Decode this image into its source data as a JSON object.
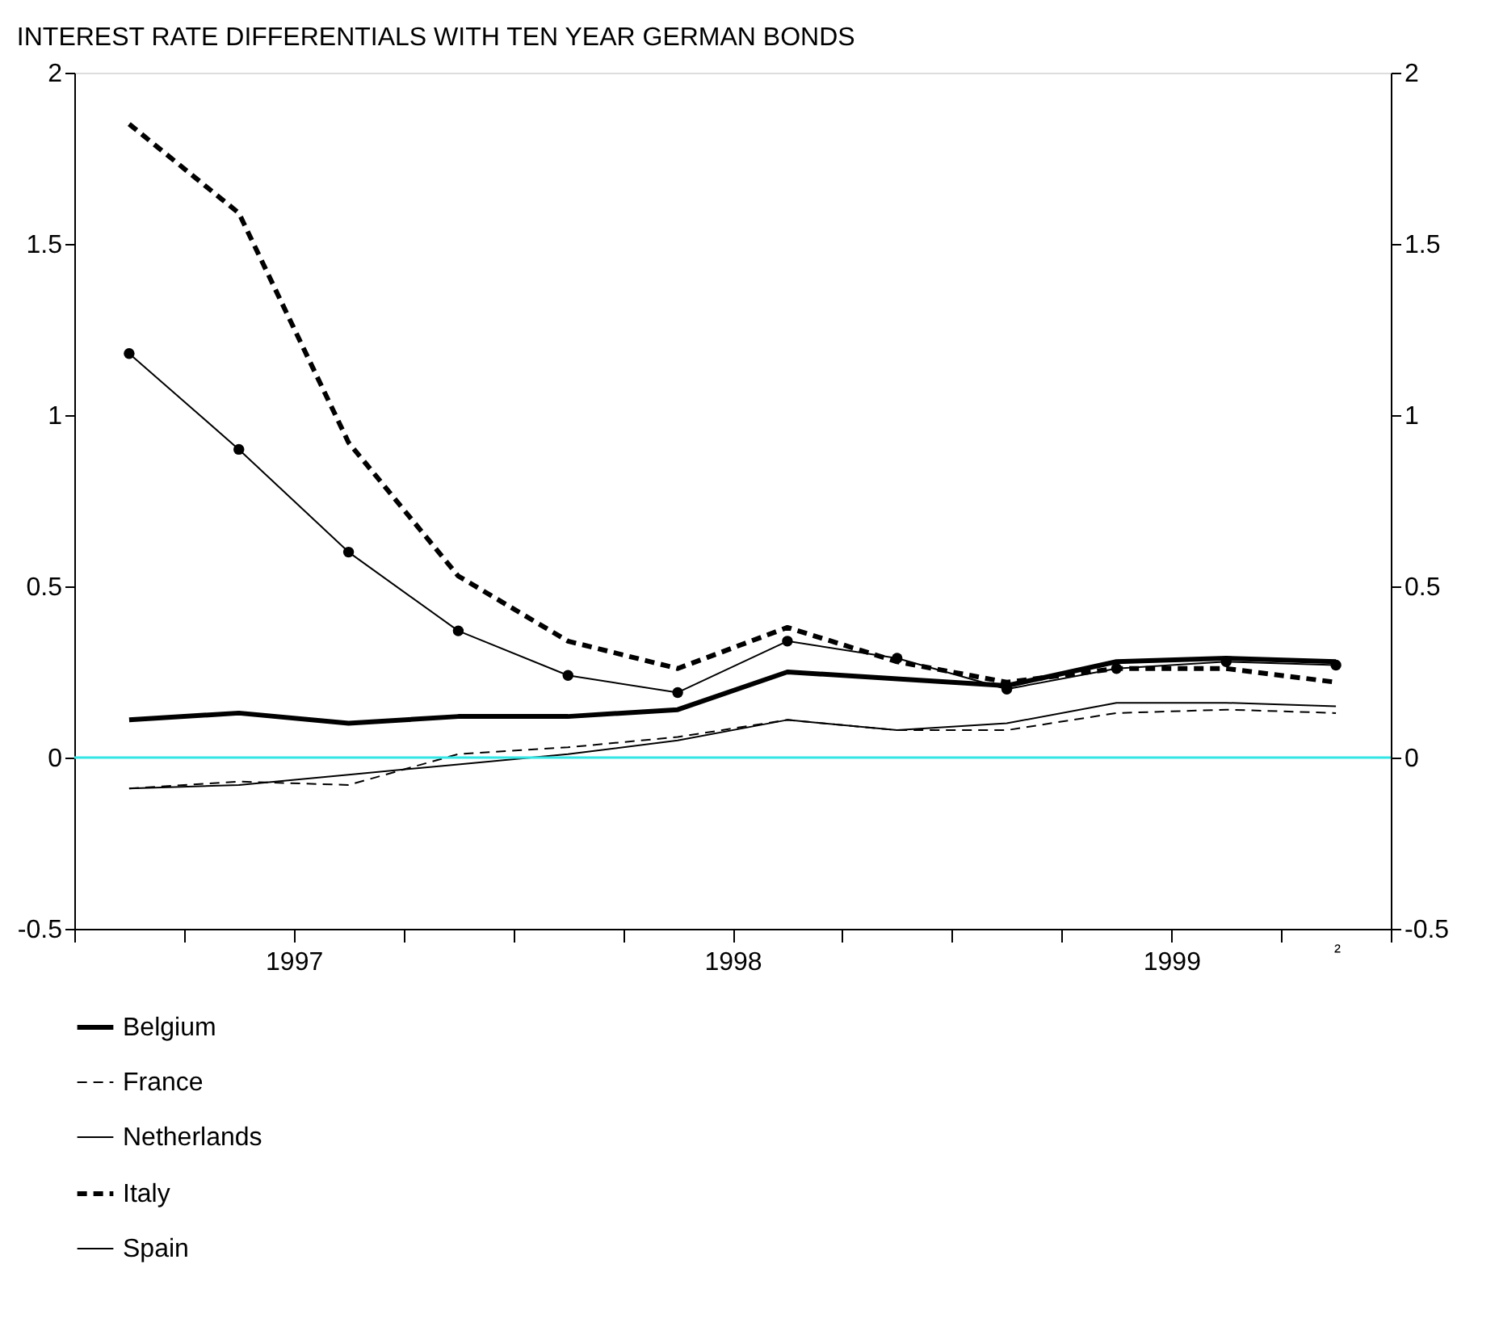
{
  "chart_data": {
    "type": "line",
    "title": "INTEREST RATE DIFFERENTIALS WITH TEN YEAR GERMAN BONDS",
    "x": [
      1997.125,
      1997.375,
      1997.625,
      1997.875,
      1998.125,
      1998.375,
      1998.625,
      1998.875,
      1999.125,
      1999.375,
      1999.625,
      1999.875
    ],
    "series": [
      {
        "name": "Belgium",
        "color": "#000000",
        "line_style": "solid",
        "marker": "none",
        "values": [
          0.11,
          0.13,
          0.1,
          0.12,
          0.12,
          0.14,
          0.25,
          0.23,
          0.21,
          0.28,
          0.29,
          0.28
        ]
      },
      {
        "name": "France",
        "color": "#000000",
        "line_style": "dashed",
        "marker": "none",
        "values": [
          -0.09,
          -0.07,
          -0.08,
          0.01,
          0.03,
          0.06,
          0.11,
          0.08,
          0.08,
          0.13,
          0.14,
          0.13
        ]
      },
      {
        "name": "Netherlands",
        "color": "#000000",
        "line_style": "solid",
        "marker": "none",
        "values": [
          -0.09,
          -0.08,
          -0.05,
          -0.02,
          0.01,
          0.05,
          0.11,
          0.08,
          0.1,
          0.16,
          0.16,
          0.15
        ]
      },
      {
        "name": "Italy",
        "color": "#000000",
        "line_style": "dashed",
        "marker": "none",
        "values": [
          1.85,
          1.59,
          0.92,
          0.53,
          0.34,
          0.26,
          0.38,
          0.28,
          0.22,
          0.26,
          0.26,
          0.22
        ]
      },
      {
        "name": "Spain",
        "color": "#000000",
        "line_style": "solid",
        "marker": "circle",
        "values": [
          1.18,
          0.9,
          0.6,
          0.37,
          0.24,
          0.19,
          0.34,
          0.29,
          0.2,
          0.26,
          0.28,
          0.27
        ]
      }
    ],
    "xlim": [
      1997,
      2000
    ],
    "xticks": [
      {
        "value": 1997,
        "label": null
      },
      {
        "value": 1997.25,
        "label": null
      },
      {
        "value": 1997.5,
        "label": "1997"
      },
      {
        "value": 1997.75,
        "label": null
      },
      {
        "value": 1998,
        "label": null
      },
      {
        "value": 1998.25,
        "label": null
      },
      {
        "value": 1998.5,
        "label": "1998"
      },
      {
        "value": 1998.75,
        "label": null
      },
      {
        "value": 1999,
        "label": null
      },
      {
        "value": 1999.25,
        "label": null
      },
      {
        "value": 1999.5,
        "label": "1999"
      },
      {
        "value": 1999.75,
        "label": null
      },
      {
        "value": 2000,
        "label": null
      }
    ],
    "ylim": [
      -0.5,
      2
    ],
    "yticks": [
      -0.5,
      0,
      0.5,
      1,
      1.5,
      2
    ],
    "y2lim": [
      -0.5,
      2
    ],
    "y2ticks": [
      -0.5,
      0,
      0.5,
      1,
      1.5,
      2
    ],
    "ref_lines": [
      {
        "axis": "y",
        "value": 0,
        "color": "#33e6e6",
        "line_style": "solid"
      }
    ],
    "annotations": [
      "²"
    ],
    "grid": false,
    "legend": "bottom left"
  }
}
